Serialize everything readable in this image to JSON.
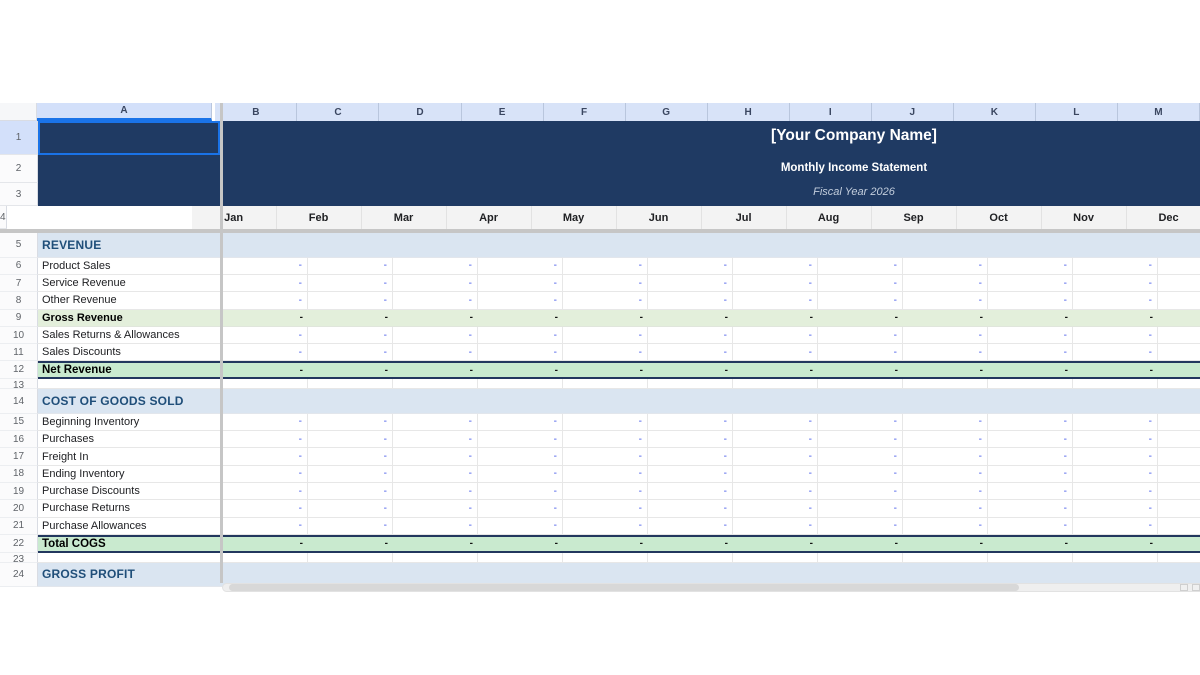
{
  "sheet": {
    "column_letters": [
      "A",
      "B",
      "C",
      "D",
      "E",
      "F",
      "G",
      "H",
      "I",
      "J",
      "K",
      "L",
      "M"
    ],
    "frozen_row_numbers": [
      "1",
      "2",
      "3",
      "4"
    ],
    "title_block": {
      "company": "[Your Company Name]",
      "subtitle": "Monthly Income Statement",
      "fiscal_year": "Fiscal Year 2026"
    },
    "months": [
      "Jan",
      "Feb",
      "Mar",
      "Apr",
      "May",
      "Jun",
      "Jul",
      "Aug",
      "Sep",
      "Oct",
      "Nov",
      "Dec"
    ],
    "empty_value": "-",
    "rows": [
      {
        "num": "5",
        "label": "REVENUE",
        "type": "section"
      },
      {
        "num": "6",
        "label": "Product Sales",
        "type": "data"
      },
      {
        "num": "7",
        "label": "Service Revenue",
        "type": "data"
      },
      {
        "num": "8",
        "label": "Other Revenue",
        "type": "data"
      },
      {
        "num": "9",
        "label": "Gross Revenue",
        "type": "subtotal"
      },
      {
        "num": "10",
        "label": "Sales Returns & Allowances",
        "type": "data"
      },
      {
        "num": "11",
        "label": "Sales Discounts",
        "type": "data"
      },
      {
        "num": "12",
        "label": "Net Revenue",
        "type": "total"
      },
      {
        "num": "13",
        "label": "",
        "type": "spacer"
      },
      {
        "num": "14",
        "label": "COST OF GOODS SOLD",
        "type": "section"
      },
      {
        "num": "15",
        "label": "Beginning Inventory",
        "type": "data"
      },
      {
        "num": "16",
        "label": "Purchases",
        "type": "data"
      },
      {
        "num": "17",
        "label": "Freight In",
        "type": "data"
      },
      {
        "num": "18",
        "label": "Ending Inventory",
        "type": "data"
      },
      {
        "num": "19",
        "label": "Purchase Discounts",
        "type": "data"
      },
      {
        "num": "20",
        "label": "Purchase Returns",
        "type": "data"
      },
      {
        "num": "21",
        "label": "Purchase Allowances",
        "type": "data"
      },
      {
        "num": "22",
        "label": "Total COGS",
        "type": "total"
      },
      {
        "num": "23",
        "label": "",
        "type": "spacer"
      },
      {
        "num": "24",
        "label": "GROSS PROFIT",
        "type": "section"
      }
    ],
    "colors": {
      "header_navy": "#1f3a63",
      "section_band_blue": "#dae5f1",
      "subtotal_band_green": "#e3efdb",
      "total_band_green": "#c9eacf",
      "total_border_navy": "#22375e",
      "selection_blue": "#1a73e8",
      "value_dash_blue": "#3d52e8",
      "section_text_blue": "#1f4e79",
      "month_row_gray": "#f3f3f3",
      "column_header_blue": "#d8e3f8"
    }
  }
}
